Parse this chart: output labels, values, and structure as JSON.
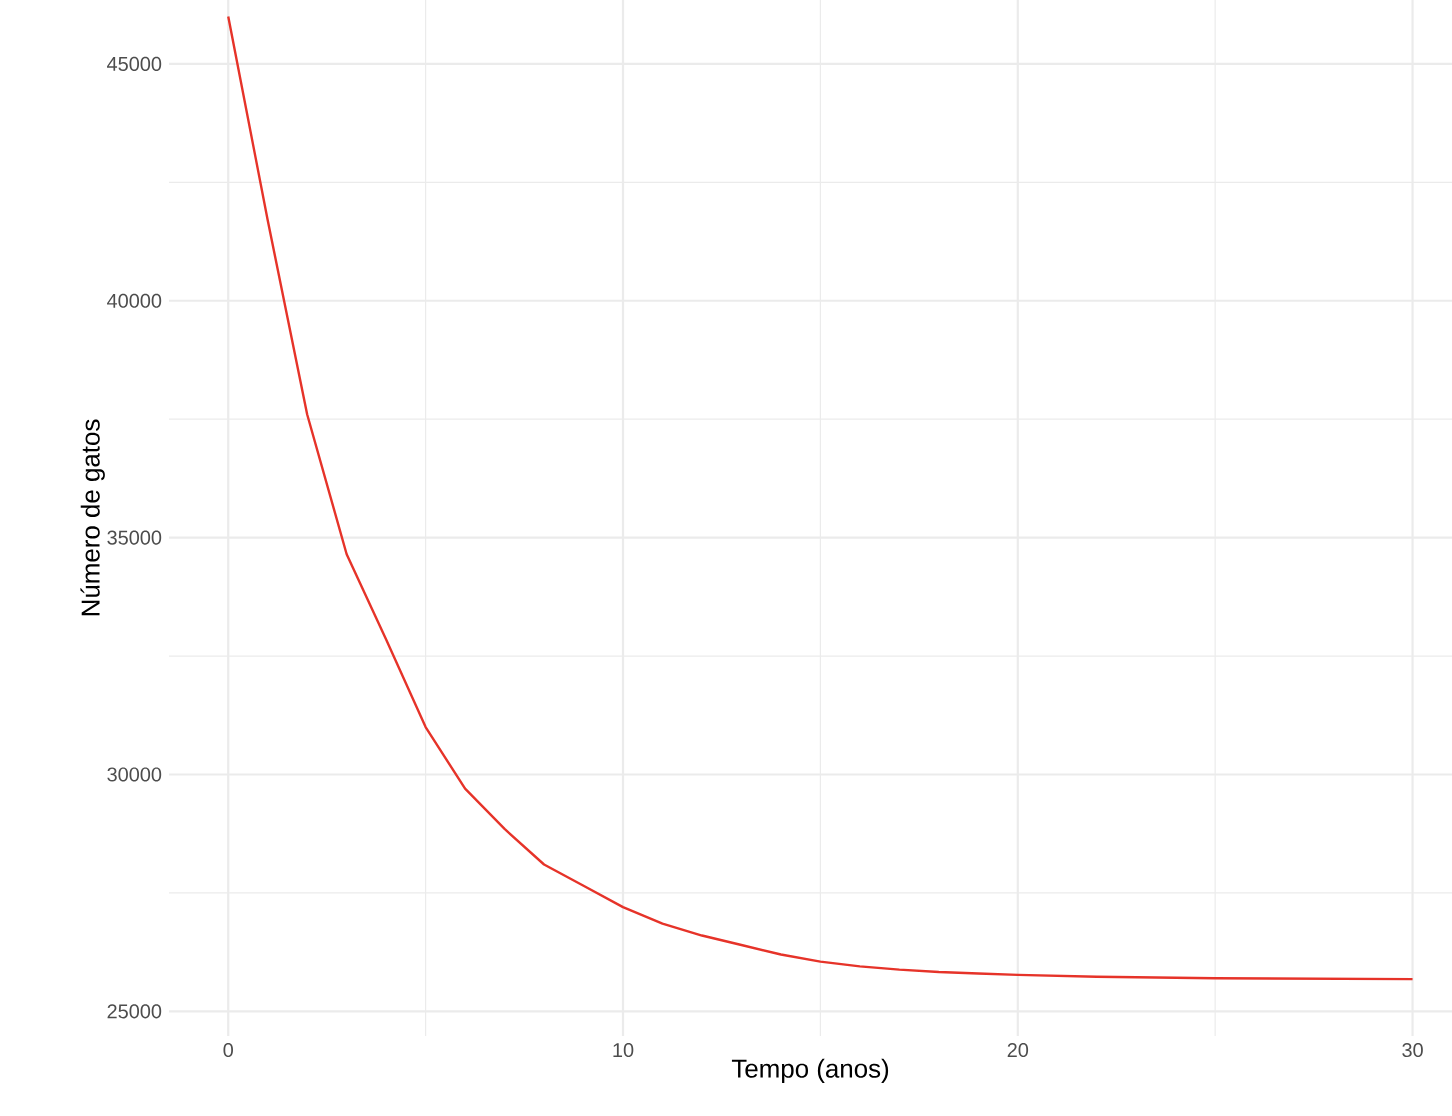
{
  "chart_data": {
    "type": "line",
    "xlabel": "Tempo (anos)",
    "ylabel": "Número de gatos",
    "x": [
      0,
      1,
      2,
      3,
      4,
      5,
      6,
      7,
      8,
      9,
      10,
      11,
      12,
      13,
      14,
      15,
      16,
      17,
      18,
      19,
      20,
      22,
      25,
      30
    ],
    "series": [
      {
        "color": "#e63329",
        "values": [
          46000,
          41700,
          37600,
          34650,
          32850,
          31000,
          29700,
          28850,
          28100,
          27650,
          27200,
          26850,
          26600,
          26400,
          26200,
          26050,
          25950,
          25880,
          25830,
          25800,
          25770,
          25730,
          25700,
          25680
        ]
      }
    ],
    "xlim": [
      -1.5,
      31
    ],
    "ylim": [
      24480,
      46350
    ],
    "xticks": [
      0,
      10,
      20,
      30
    ],
    "yticks": [
      25000,
      30000,
      35000,
      40000,
      45000
    ],
    "grid": true
  }
}
